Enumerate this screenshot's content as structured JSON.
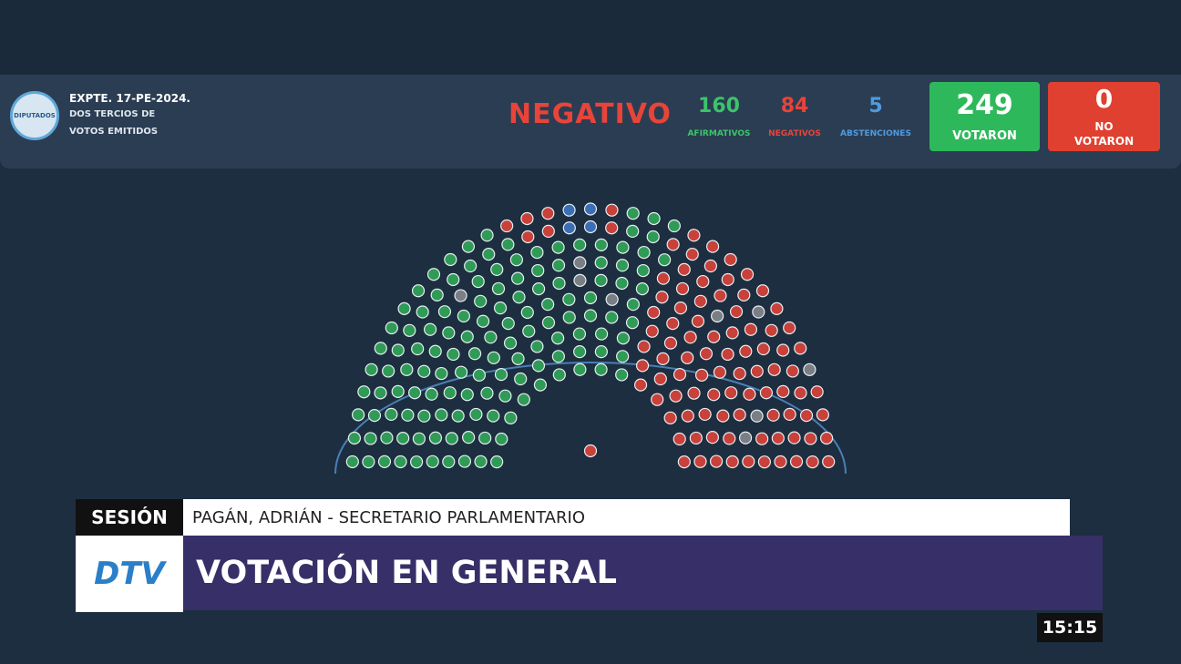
{
  "header": {
    "logo": "DIPUTADOS",
    "expediente": "EXPTE. 17-PE-2024.",
    "majority_lines": [
      "DOS TERCIOS DE",
      "VOTOS EMITIDOS"
    ],
    "result": "NEGATIVO",
    "counts": [
      {
        "value": 160,
        "label": "AFIRMATIVOS"
      },
      {
        "value": 84,
        "label": "NEGATIVOS"
      },
      {
        "value": 5,
        "label": "ABSTENCIONES"
      }
    ],
    "voted": {
      "value": 249,
      "label": "VOTARON"
    },
    "not_voted": {
      "value": 0,
      "label_lines": [
        "NO",
        "VOTARON"
      ]
    }
  },
  "lower_third": {
    "tag": "SESIÓN",
    "speaker": "PAGÁN, ADRIÁN - SECRETARIO PARLAMENTARIO",
    "headline": "VOTACIÓN EN GENERAL",
    "channel_logo": "DTV",
    "clock": "15:15"
  }
}
